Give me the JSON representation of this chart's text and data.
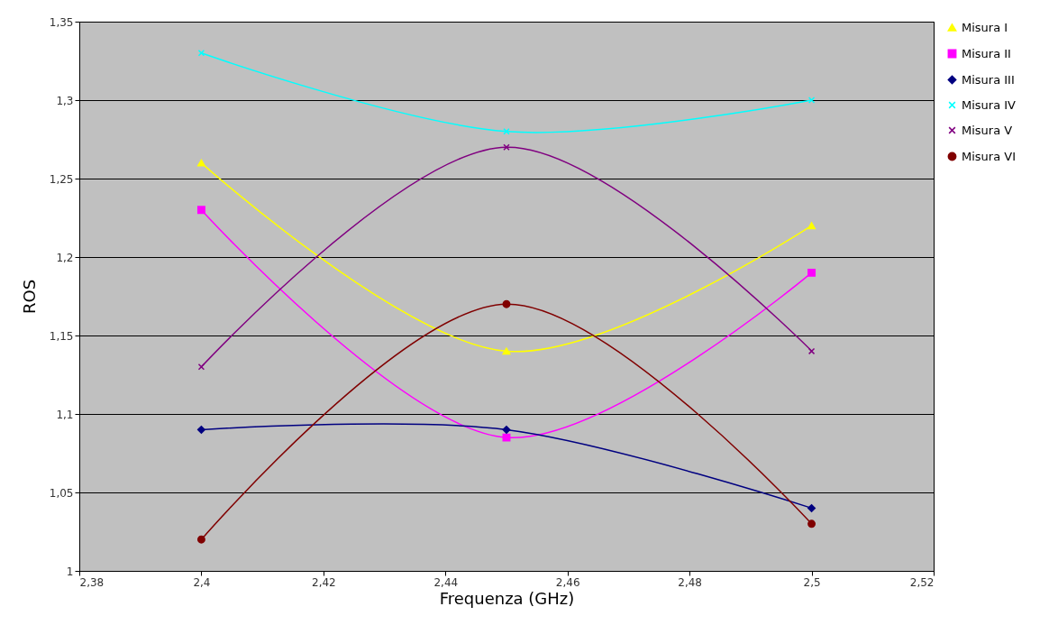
{
  "chart_data": {
    "type": "line",
    "xlabel": "Frequenza (GHz)",
    "ylabel": "ROS",
    "x": [
      2.4,
      2.45,
      2.5
    ],
    "xlim": [
      2.38,
      2.52
    ],
    "xticks": [
      {
        "value": 2.38,
        "label": "2,38"
      },
      {
        "value": 2.4,
        "label": "2,4"
      },
      {
        "value": 2.42,
        "label": "2,42"
      },
      {
        "value": 2.44,
        "label": "2,44"
      },
      {
        "value": 2.46,
        "label": "2,46"
      },
      {
        "value": 2.48,
        "label": "2,48"
      },
      {
        "value": 2.5,
        "label": "2,5"
      },
      {
        "value": 2.52,
        "label": "2,52"
      }
    ],
    "ylim": [
      1,
      1.35
    ],
    "yticks": [
      1,
      {
        "value": 1.05,
        "label": "1,05"
      },
      {
        "value": 1.1,
        "label": "1,1"
      },
      {
        "value": 1.15,
        "label": "1,15"
      },
      {
        "value": 1.2,
        "label": "1,2"
      },
      {
        "value": 1.25,
        "label": "1,25"
      },
      {
        "value": 1.3,
        "label": "1,3"
      },
      {
        "value": 1.35,
        "label": "1,35"
      }
    ],
    "grid": "y",
    "legend": "right",
    "series": [
      {
        "name": "Misura I",
        "color": "#ffff00",
        "marker": "triangle",
        "values": [
          1.26,
          1.14,
          1.22
        ]
      },
      {
        "name": "Misura II",
        "color": "#ff00ff",
        "marker": "square",
        "values": [
          1.23,
          1.085,
          1.19
        ]
      },
      {
        "name": "Misura III",
        "color": "#000080",
        "marker": "diamond",
        "values": [
          1.09,
          1.09,
          1.04
        ]
      },
      {
        "name": "Misura IV",
        "color": "#00ffff",
        "marker": "cross",
        "values": [
          1.33,
          1.28,
          1.3
        ]
      },
      {
        "name": "Misura V",
        "color": "#800080",
        "marker": "cross",
        "values": [
          1.13,
          1.27,
          1.14
        ]
      },
      {
        "name": "Misura VI",
        "color": "#800000",
        "marker": "circle",
        "values": [
          1.02,
          1.17,
          1.03
        ]
      }
    ]
  }
}
